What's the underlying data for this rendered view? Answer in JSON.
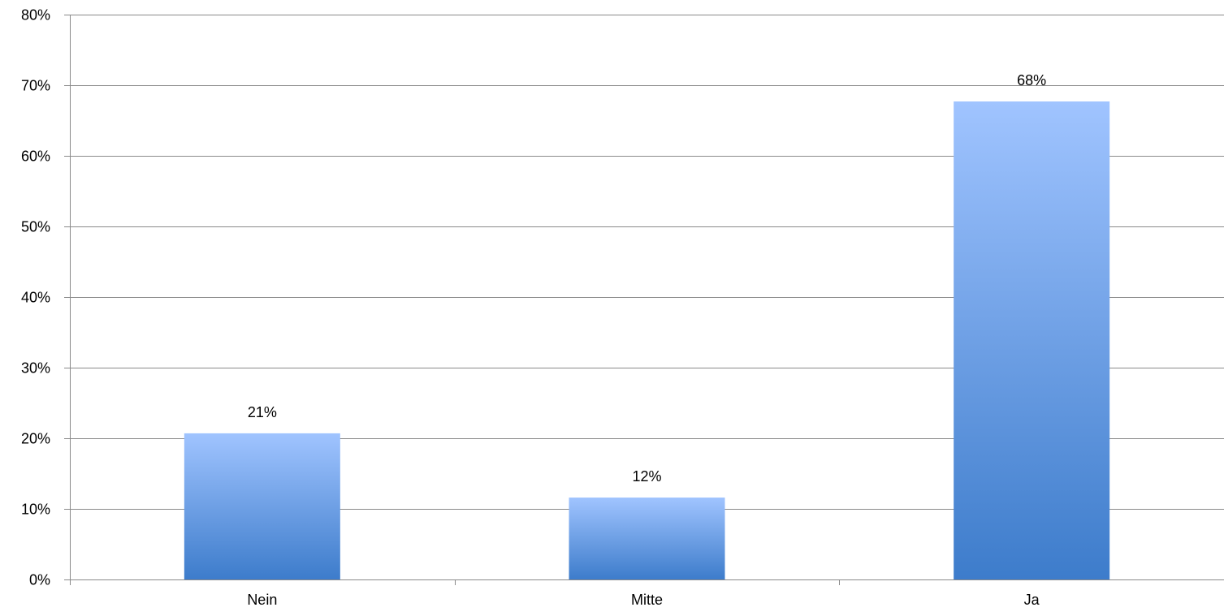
{
  "chart_data": {
    "type": "bar",
    "categories": [
      "Nein",
      "Mitte",
      "Ja"
    ],
    "values": [
      20.7,
      11.6,
      67.7
    ],
    "data_labels": [
      "21%",
      "12%",
      "68%"
    ],
    "ylim": [
      0,
      80
    ],
    "yticks": [
      0,
      10,
      20,
      30,
      40,
      50,
      60,
      70,
      80
    ],
    "ytick_labels": [
      "0%",
      "10%",
      "20%",
      "30%",
      "40%",
      "50%",
      "60%",
      "70%",
      "80%"
    ],
    "grid": true,
    "legend": false,
    "colors": {
      "bar_top": "#a0c4ff",
      "bar_bottom": "#3d7ccb",
      "grid": "#8a8a8a",
      "axis": "#8a8a8a"
    }
  }
}
